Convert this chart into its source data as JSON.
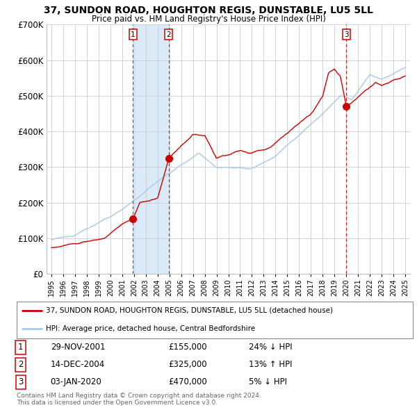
{
  "title": "37, SUNDON ROAD, HOUGHTON REGIS, DUNSTABLE, LU5 5LL",
  "subtitle": "Price paid vs. HM Land Registry's House Price Index (HPI)",
  "legend_line1": "37, SUNDON ROAD, HOUGHTON REGIS, DUNSTABLE, LU5 5LL (detached house)",
  "legend_line2": "HPI: Average price, detached house, Central Bedfordshire",
  "footer1": "Contains HM Land Registry data © Crown copyright and database right 2024.",
  "footer2": "This data is licensed under the Open Government Licence v3.0.",
  "transactions": [
    {
      "num": 1,
      "date": "29-NOV-2001",
      "price": 155000,
      "pct": "24%",
      "dir": "↓",
      "year": 2001.91
    },
    {
      "num": 2,
      "date": "14-DEC-2004",
      "price": 325000,
      "pct": "13%",
      "dir": "↑",
      "year": 2004.95
    },
    {
      "num": 3,
      "date": "03-JAN-2020",
      "price": 470000,
      "pct": "5%",
      "dir": "↓",
      "year": 2020.01
    }
  ],
  "hpi_color": "#a8c8e8",
  "price_color": "#cc0000",
  "marker_color": "#cc0000",
  "vline_color": "#cc0000",
  "shade_color": "#daeaf8",
  "grid_color": "#cccccc",
  "bg_color": "#ffffff",
  "ylim": [
    0,
    700000
  ],
  "yticks": [
    0,
    100000,
    200000,
    300000,
    400000,
    500000,
    600000,
    700000
  ],
  "xlim_start": 1994.6,
  "xlim_end": 2025.4,
  "xtick_years": [
    1995,
    1996,
    1997,
    1998,
    1999,
    2000,
    2001,
    2002,
    2003,
    2004,
    2005,
    2006,
    2007,
    2008,
    2009,
    2010,
    2011,
    2012,
    2013,
    2014,
    2015,
    2016,
    2017,
    2018,
    2019,
    2020,
    2021,
    2022,
    2023,
    2024,
    2025
  ]
}
